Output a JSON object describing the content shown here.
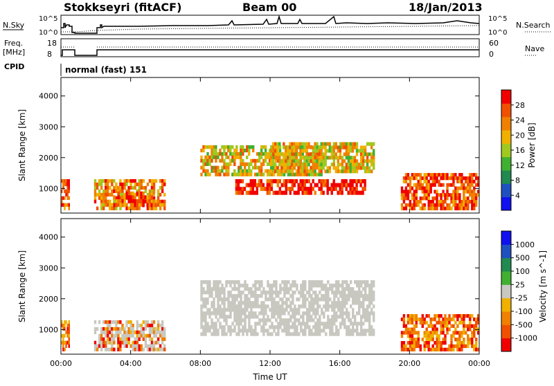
{
  "header": {
    "station": "Stokkseyri (fitACF)",
    "beam": "Beam 00",
    "date": "18/Jan/2013"
  },
  "strips": {
    "nsky_label": "N.Sky",
    "nsearch_label": "N.Search",
    "noise_ticks": [
      "10^5",
      "10^0"
    ],
    "freq_label_1": "Freq.",
    "freq_label_2": "[MHz]",
    "freq_ticks": [
      "18",
      "8"
    ],
    "nave_label": "Nave",
    "nave_ticks": [
      "60",
      "0"
    ],
    "cpid_label": "CPID",
    "cpid_text": "normal (fast) 151"
  },
  "colors": {
    "power_scale": [
      "#1010f0",
      "#2050c0",
      "#208a50",
      "#40b030",
      "#a0c820",
      "#f0b000",
      "#f08000",
      "#f05000",
      "#f00000"
    ],
    "velocity_scale": [
      "#f00000",
      "#f05000",
      "#f08000",
      "#f0b000",
      "#c8c8c0",
      "#40b030",
      "#208a50",
      "#2050c0",
      "#1010f0"
    ],
    "ground_scatter": "#c8c8c0"
  },
  "chart_data": [
    {
      "type": "heatmap",
      "panel": "power",
      "ylabel": "Slant Range [km]",
      "xlabel": "",
      "x_ticks": [
        "00:00",
        "04:00",
        "08:00",
        "12:00",
        "16:00",
        "20:00",
        "00:00"
      ],
      "y_ticks": [
        1000,
        2000,
        3000,
        4000
      ],
      "ylim": [
        200,
        4600
      ],
      "xlim_hours": [
        0,
        24
      ],
      "colorbar": {
        "label": "Power [dB]",
        "ticks": [
          4,
          8,
          12,
          16,
          20,
          24,
          28
        ],
        "range": [
          0,
          32
        ]
      },
      "echo_regions": [
        {
          "t0": 0.0,
          "t1": 0.5,
          "r0": 300,
          "r1": 1300,
          "level": 26
        },
        {
          "t0": 1.9,
          "t1": 6.0,
          "r0": 300,
          "r1": 1300,
          "level": 22
        },
        {
          "t0": 3.0,
          "t1": 5.5,
          "r0": 400,
          "r1": 900,
          "level": 28
        },
        {
          "t0": 8.0,
          "t1": 15.0,
          "r0": 1400,
          "r1": 2400,
          "level": 18
        },
        {
          "t0": 10.0,
          "t1": 17.5,
          "r0": 800,
          "r1": 1300,
          "level": 30
        },
        {
          "t0": 12.0,
          "t1": 18.0,
          "r0": 1500,
          "r1": 2500,
          "level": 20
        },
        {
          "t0": 19.5,
          "t1": 24.0,
          "r0": 300,
          "r1": 1500,
          "level": 26
        }
      ]
    },
    {
      "type": "heatmap",
      "panel": "velocity",
      "ylabel": "Slant Range [km]",
      "xlabel": "Time UT",
      "x_ticks": [
        "00:00",
        "04:00",
        "08:00",
        "12:00",
        "16:00",
        "20:00",
        "00:00"
      ],
      "y_ticks": [
        1000,
        2000,
        3000,
        4000
      ],
      "ylim": [
        200,
        4600
      ],
      "xlim_hours": [
        0,
        24
      ],
      "colorbar": {
        "label": "Velocity [m s^-1]",
        "ticks": [
          -1000,
          -500,
          -100,
          -25,
          25,
          100,
          500,
          1000
        ]
      },
      "echo_regions": [
        {
          "t0": 0.0,
          "t1": 0.5,
          "r0": 300,
          "r1": 1300,
          "kind": "negative"
        },
        {
          "t0": 1.9,
          "t1": 6.0,
          "r0": 300,
          "r1": 1300,
          "kind": "mixed"
        },
        {
          "t0": 8.0,
          "t1": 18.0,
          "r0": 800,
          "r1": 2600,
          "kind": "ground"
        },
        {
          "t0": 19.5,
          "t1": 24.0,
          "r0": 300,
          "r1": 1500,
          "kind": "negative"
        }
      ]
    }
  ]
}
